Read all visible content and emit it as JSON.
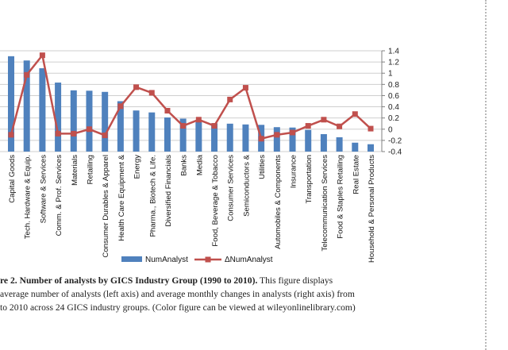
{
  "chart_data": {
    "type": "bar+line",
    "categories": [
      "Capital Goods",
      "Tech. Hardware & Equip.",
      "Software & Services",
      "Comm. & Prof. Services",
      "Materials",
      "Retailing",
      "Consumer Durables & Apparel",
      "Health Care Equipment &",
      "Energy",
      "Pharma., Biotech & Life.",
      "Diversified Financials",
      "Banks",
      "Media",
      "Food, Beverage & Tobacco",
      "Consumer Services",
      "Semiconductors &",
      "Utilities",
      "Automobiles & Components",
      "Insurance",
      "Transportation",
      "Telecommunication Services",
      "Food & Staples Retailing",
      "Real Estate",
      "Household & Personal Products"
    ],
    "series": [
      {
        "name": "NumAnalyst",
        "axis": "left",
        "kind": "bar",
        "color": "#4f81bd",
        "values": [
          39.6,
          38.5,
          36.5,
          32.8,
          30.8,
          30.7,
          30.4,
          28,
          25.6,
          25.1,
          23.8,
          23.5,
          22.6,
          22.3,
          22.2,
          22,
          21.9,
          21.3,
          21.2,
          20.6,
          19.5,
          18.7,
          17.3,
          16.9
        ]
      },
      {
        "name": "ΔNumAnalyst",
        "axis": "right",
        "kind": "line",
        "color": "#c0504d",
        "values": [
          -0.1,
          0.97,
          1.32,
          -0.08,
          -0.08,
          0.0,
          -0.11,
          0.41,
          0.75,
          0.65,
          0.33,
          0.06,
          0.17,
          0.06,
          0.53,
          0.74,
          -0.17,
          -0.1,
          -0.06,
          0.06,
          0.17,
          0.05,
          0.27,
          0.01
        ]
      }
    ],
    "y2lim": [
      -0.4,
      1.4
    ],
    "y2ticks": [
      "1.4",
      "1.2",
      "1",
      "0.8",
      "0.6",
      "0.4",
      "0.2",
      "0",
      "-0.2",
      "-0.4"
    ],
    "ylim": [
      15,
      41
    ],
    "legend_position": "bottom",
    "grid": true
  },
  "caption": {
    "line1_bold": "re 2.  Number of analysts by GICS Industry Group (1990 to 2010).",
    "line1_rest": " This figure displays",
    "line2": "average number of analysts (left axis) and average monthly changes in analysts (right axis) from",
    "line3": "to 2010 across 24 GICS industry groups. (Color figure can be viewed at wileyonlinelibrary.com)"
  }
}
